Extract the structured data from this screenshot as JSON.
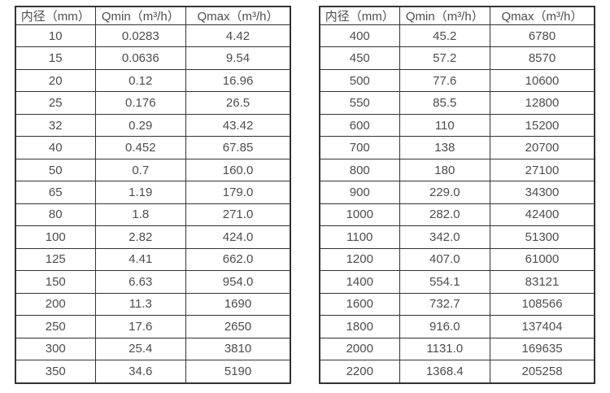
{
  "colors": {
    "background": "#ffffff",
    "border": "#333333",
    "text": "#4d4d4d"
  },
  "chart_data": [
    {
      "type": "table",
      "title": "",
      "headers": [
        "内径（mm）",
        "Qmin（m³/h）",
        "Qmax（m³/h）"
      ],
      "rows": [
        [
          "10",
          "0.0283",
          "4.42"
        ],
        [
          "15",
          "0.0636",
          "9.54"
        ],
        [
          "20",
          "0.12",
          "16.96"
        ],
        [
          "25",
          "0.176",
          "26.5"
        ],
        [
          "32",
          "0.29",
          "43.42"
        ],
        [
          "40",
          "0.452",
          "67.85"
        ],
        [
          "50",
          "0.7",
          "160.0"
        ],
        [
          "65",
          "1.19",
          "179.0"
        ],
        [
          "80",
          "1.8",
          "271.0"
        ],
        [
          "100",
          "2.82",
          "424.0"
        ],
        [
          "125",
          "4.41",
          "662.0"
        ],
        [
          "150",
          "6.63",
          "954.0"
        ],
        [
          "200",
          "11.3",
          "1690"
        ],
        [
          "250",
          "17.6",
          "2650"
        ],
        [
          "300",
          "25.4",
          "3810"
        ],
        [
          "350",
          "34.6",
          "5190"
        ]
      ]
    },
    {
      "type": "table",
      "title": "",
      "headers": [
        "内径（mm）",
        "Qmin（m³/h）",
        "Qmax（m³/h）"
      ],
      "rows": [
        [
          "400",
          "45.2",
          "6780"
        ],
        [
          "450",
          "57.2",
          "8570"
        ],
        [
          "500",
          "77.6",
          "10600"
        ],
        [
          "550",
          "85.5",
          "12800"
        ],
        [
          "600",
          "110",
          "15200"
        ],
        [
          "700",
          "138",
          "20700"
        ],
        [
          "800",
          "180",
          "27100"
        ],
        [
          "900",
          "229.0",
          "34300"
        ],
        [
          "1000",
          "282.0",
          "42400"
        ],
        [
          "1100",
          "342.0",
          "51300"
        ],
        [
          "1200",
          "407.0",
          "61000"
        ],
        [
          "1400",
          "554.1",
          "83121"
        ],
        [
          "1600",
          "732.7",
          "108566"
        ],
        [
          "1800",
          "916.0",
          "137404"
        ],
        [
          "2000",
          "1131.0",
          "169635"
        ],
        [
          "2200",
          "1368.4",
          "205258"
        ]
      ]
    }
  ]
}
